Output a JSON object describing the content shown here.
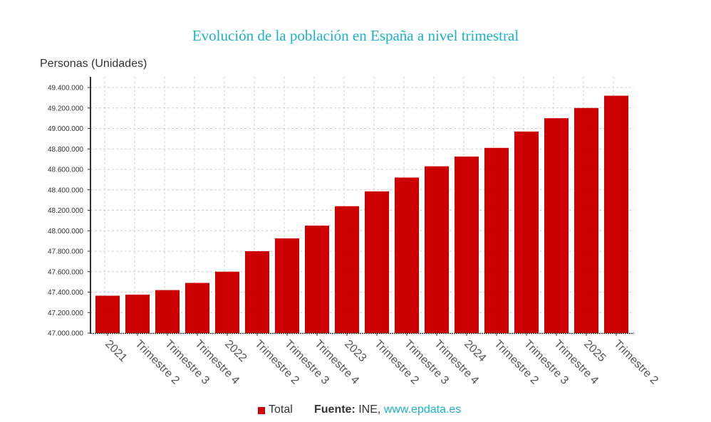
{
  "title": "Evolución de la población en España a nivel trimestral",
  "colors": {
    "bar": "#cc0000",
    "title": "#1ab2c8",
    "link": "#1ab2c8",
    "grid": "#cccccc",
    "axis": "#333333"
  },
  "legend": {
    "series_label": "Total",
    "source_label": "Fuente:",
    "source_value": "INE,",
    "source_link": "www.epdata.es"
  },
  "chart_data": {
    "type": "bar",
    "title": "Evolución de la población en España a nivel trimestral",
    "xlabel": "",
    "ylabel": "Personas (Unidades)",
    "ylim": [
      47000000,
      49400000
    ],
    "yticks": [
      47000000,
      47200000,
      47400000,
      47600000,
      47800000,
      48000000,
      48200000,
      48400000,
      48600000,
      48800000,
      49000000,
      49200000,
      49400000
    ],
    "ytick_labels": [
      "47.000.000",
      "47.200.000",
      "47.400.000",
      "47.600.000",
      "47.800.000",
      "48.000.000",
      "48.200.000",
      "48.400.000",
      "48.600.000",
      "48.800.000",
      "49.000.000",
      "49.200.000",
      "49.400.000"
    ],
    "grid": true,
    "legend_position": "bottom",
    "categories": [
      "2021",
      "Trimestre 2",
      "Trimestre 3",
      "Trimestre 4",
      "2022",
      "Trimestre 2",
      "Trimestre 3",
      "Trimestre 4",
      "2023",
      "Trimestre 2",
      "Trimestre 3",
      "Trimestre 4",
      "2024",
      "Trimestre 2",
      "Trimestre 3",
      "Trimestre 4",
      "2025",
      "Trimestre 2"
    ],
    "series": [
      {
        "name": "Total",
        "values": [
          47365000,
          47375000,
          47420000,
          47490000,
          47600000,
          47800000,
          47925000,
          48050000,
          48240000,
          48385000,
          48520000,
          48630000,
          48725000,
          48810000,
          48970000,
          49100000,
          49200000,
          49320000
        ]
      }
    ]
  }
}
